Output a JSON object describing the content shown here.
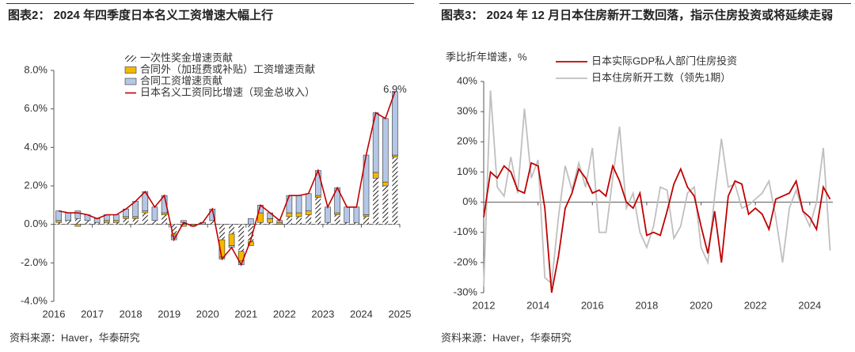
{
  "chart_data": [
    {
      "type": "bar",
      "title": "图表2：  2024 年四季度日本名义工资增速大幅上行",
      "x": [
        2016.125,
        2016.375,
        2016.625,
        2016.875,
        2017.125,
        2017.375,
        2017.625,
        2017.875,
        2018.125,
        2018.375,
        2018.625,
        2018.875,
        2019.125,
        2019.375,
        2019.625,
        2019.875,
        2020.125,
        2020.375,
        2020.625,
        2020.875,
        2021.125,
        2021.375,
        2021.625,
        2021.875,
        2022.125,
        2022.375,
        2022.625,
        2022.875,
        2023.125,
        2023.375,
        2023.625,
        2023.875,
        2024.125,
        2024.375,
        2024.625,
        2024.875
      ],
      "series": [
        {
          "name": "一次性奖金增速贡献",
          "color": "#333333",
          "hatch": true,
          "values": [
            0.1,
            0.2,
            0.3,
            0.2,
            0.1,
            0.1,
            0.1,
            0.3,
            0.3,
            0.6,
            0.2,
            0.5,
            -0.5,
            0.1,
            0.0,
            0.0,
            0.2,
            -0.8,
            -0.5,
            -1.4,
            -0.9,
            0.1,
            0.1,
            0.0,
            0.4,
            0.4,
            0.5,
            1.4,
            0.1,
            0.5,
            0.1,
            0.1,
            0.4,
            2.4,
            2.0,
            3.5
          ]
        },
        {
          "name": "合同外（加班费或补贴）工资增速贡献",
          "color": "#f5b800",
          "values": [
            0.1,
            0.0,
            -0.1,
            0.0,
            0.0,
            0.1,
            0.1,
            0.1,
            0.1,
            0.1,
            0.0,
            0.1,
            -0.1,
            -0.1,
            -0.1,
            0.0,
            0.0,
            -0.9,
            -0.6,
            -0.5,
            -0.2,
            0.5,
            0.2,
            0.1,
            0.2,
            0.2,
            0.2,
            0.1,
            0.0,
            0.1,
            0.0,
            0.0,
            0.1,
            0.3,
            0.2,
            0.1
          ]
        },
        {
          "name": "合同工资增速贡献",
          "color": "#b4c7e7",
          "values": [
            0.5,
            0.4,
            0.4,
            0.3,
            0.2,
            0.3,
            0.3,
            0.4,
            0.8,
            1.0,
            0.7,
            0.9,
            -0.2,
            0.1,
            0.0,
            0.1,
            0.6,
            -0.1,
            -0.1,
            -0.2,
            0.3,
            0.4,
            0.3,
            0.1,
            0.9,
            0.9,
            0.9,
            1.3,
            0.8,
            1.3,
            0.8,
            0.8,
            3.1,
            3.1,
            3.3,
            3.3
          ]
        },
        {
          "name": "日本名义工资同比增速（现金总收入）",
          "color": "#c00000",
          "type": "line",
          "values": [
            0.7,
            0.6,
            0.6,
            0.5,
            0.3,
            0.5,
            0.5,
            0.8,
            1.2,
            1.7,
            0.9,
            1.5,
            -0.8,
            0.1,
            -0.1,
            0.1,
            0.8,
            -1.8,
            -1.2,
            -2.1,
            -0.8,
            1.0,
            0.6,
            0.2,
            1.5,
            1.5,
            1.6,
            2.8,
            0.9,
            1.9,
            0.9,
            0.9,
            3.6,
            5.8,
            5.5,
            6.9
          ]
        }
      ],
      "annotation": "6.9%",
      "xlim": [
        2016,
        2025
      ],
      "xticks": [
        2016,
        2017,
        2018,
        2019,
        2020,
        2021,
        2022,
        2023,
        2024,
        2025
      ],
      "ylim": [
        -4,
        8
      ],
      "yticks": [
        {
          "value": -4,
          "label": "-4.0%"
        },
        {
          "value": -2,
          "label": "-2.0%"
        },
        {
          "value": 0,
          "label": "0.0%"
        },
        {
          "value": 2,
          "label": "2.0%"
        },
        {
          "value": 4,
          "label": "4.0%"
        },
        {
          "value": 6,
          "label": "6.0%"
        },
        {
          "value": 8,
          "label": "8.0%"
        }
      ],
      "source": "资料来源：Haver，华泰研究"
    },
    {
      "type": "line",
      "title": "图表3：  2024 年 12 月日本住房新开工数回落，指示住房投资或将延续走弱",
      "y_label": "季比折年增速，%",
      "x": [
        2012,
        2012.25,
        2012.5,
        2012.75,
        2013,
        2013.25,
        2013.5,
        2013.75,
        2014,
        2014.25,
        2014.5,
        2014.75,
        2015,
        2015.25,
        2015.5,
        2015.75,
        2016,
        2016.25,
        2016.5,
        2016.75,
        2017,
        2017.25,
        2017.5,
        2017.75,
        2018,
        2018.25,
        2018.5,
        2018.75,
        2019,
        2019.25,
        2019.5,
        2019.75,
        2020,
        2020.25,
        2020.5,
        2020.75,
        2021,
        2021.25,
        2021.5,
        2021.75,
        2022,
        2022.25,
        2022.5,
        2022.75,
        2023,
        2023.25,
        2023.5,
        2023.75,
        2024,
        2024.25,
        2024.5,
        2024.75
      ],
      "series": [
        {
          "name": "日本实际GDP私人部门住房投资",
          "color": "#c00000",
          "values": [
            -5,
            10,
            8,
            12,
            10,
            4,
            3,
            13,
            12,
            -2,
            -30,
            -18,
            -2,
            3,
            11,
            8,
            3,
            4,
            2,
            12,
            7,
            0,
            -2,
            3,
            -11,
            -10,
            -11,
            -3,
            6,
            11,
            5,
            2,
            -8,
            -17,
            -3,
            -20,
            2,
            7,
            6,
            -4,
            -2,
            -4,
            -9,
            1,
            2,
            3,
            7,
            -3,
            -5,
            -9,
            5,
            1
          ]
        },
        {
          "name": "日本住房新开工数（领先1期）",
          "color": "#bfbfbf",
          "values": [
            -28,
            37,
            5,
            2,
            15,
            3,
            31,
            8,
            14,
            -25,
            -27,
            -5,
            12,
            4,
            13,
            5,
            18,
            -10,
            -10,
            8,
            25,
            -2,
            3,
            -10,
            -15,
            -8,
            5,
            4,
            -12,
            -8,
            3,
            5,
            -15,
            -20,
            2,
            21,
            5,
            6,
            -2,
            -1,
            1,
            3,
            7,
            -5,
            -20,
            -2,
            4,
            -3,
            -8,
            0,
            18,
            -16
          ]
        }
      ],
      "xlim": [
        2012,
        2024.85
      ],
      "xticks": [
        2012,
        2014,
        2016,
        2018,
        2020,
        2022,
        2024
      ],
      "ylim": [
        -30,
        40
      ],
      "yticks": [
        {
          "value": -30,
          "label": "-30%"
        },
        {
          "value": -20,
          "label": "-20%"
        },
        {
          "value": -10,
          "label": "-10%"
        },
        {
          "value": 0,
          "label": "0%"
        },
        {
          "value": 10,
          "label": "10%"
        },
        {
          "value": 20,
          "label": "20%"
        },
        {
          "value": 30,
          "label": "30%"
        },
        {
          "value": 40,
          "label": "40%"
        }
      ],
      "source": "资料来源：Haver，华泰研究"
    }
  ]
}
